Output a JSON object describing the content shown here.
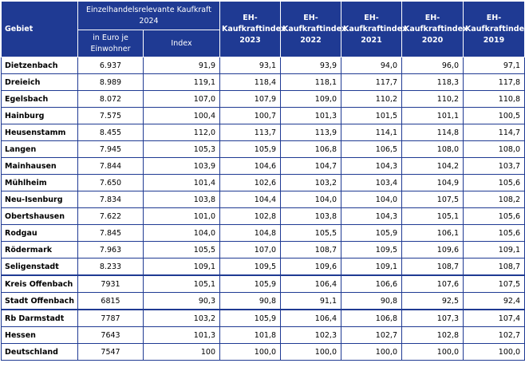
{
  "table": {
    "header": {
      "gebiet": "Gebiet",
      "kaufkraft_group": "Einzelhandelsrelevante Kaufkraft 2024",
      "euro": "in Euro je Einwohner",
      "index": "Index",
      "years": [
        "EH-Kaufkraftindex 2023",
        "EH-Kaufkraftindex 2022",
        "EH-Kaufkraftindex 2021",
        "EH-Kaufkraftindex 2020",
        "EH-Kaufkraftindex 2019"
      ]
    },
    "rows": [
      {
        "name": "Dietzenbach",
        "euro": "6.937",
        "index": "91,9",
        "y2023": "93,1",
        "y2022": "93,9",
        "y2021": "94,0",
        "y2020": "96,0",
        "y2019": "97,1"
      },
      {
        "name": "Dreieich",
        "euro": "8.989",
        "index": "119,1",
        "y2023": "118,4",
        "y2022": "118,1",
        "y2021": "117,7",
        "y2020": "118,3",
        "y2019": "117,8"
      },
      {
        "name": "Egelsbach",
        "euro": "8.072",
        "index": "107,0",
        "y2023": "107,9",
        "y2022": "109,0",
        "y2021": "110,2",
        "y2020": "110,2",
        "y2019": "110,8"
      },
      {
        "name": "Hainburg",
        "euro": "7.575",
        "index": "100,4",
        "y2023": "100,7",
        "y2022": "101,3",
        "y2021": "101,5",
        "y2020": "101,1",
        "y2019": "100,5"
      },
      {
        "name": "Heusenstamm",
        "euro": "8.455",
        "index": "112,0",
        "y2023": "113,7",
        "y2022": "113,9",
        "y2021": "114,1",
        "y2020": "114,8",
        "y2019": "114,7"
      },
      {
        "name": "Langen",
        "euro": "7.945",
        "index": "105,3",
        "y2023": "105,9",
        "y2022": "106,8",
        "y2021": "106,5",
        "y2020": "108,0",
        "y2019": "108,0"
      },
      {
        "name": "Mainhausen",
        "euro": "7.844",
        "index": "103,9",
        "y2023": "104,6",
        "y2022": "104,7",
        "y2021": "104,3",
        "y2020": "104,2",
        "y2019": "103,7"
      },
      {
        "name": "Mühlheim",
        "euro": "7.650",
        "index": "101,4",
        "y2023": "102,6",
        "y2022": "103,2",
        "y2021": "103,4",
        "y2020": "104,9",
        "y2019": "105,6"
      },
      {
        "name": "Neu-Isenburg",
        "euro": "7.834",
        "index": "103,8",
        "y2023": "104,4",
        "y2022": "104,0",
        "y2021": "104,0",
        "y2020": "107,5",
        "y2019": "108,2"
      },
      {
        "name": "Obertshausen",
        "euro": "7.622",
        "index": "101,0",
        "y2023": "102,8",
        "y2022": "103,8",
        "y2021": "104,3",
        "y2020": "105,1",
        "y2019": "105,6"
      },
      {
        "name": "Rodgau",
        "euro": "7.845",
        "index": "104,0",
        "y2023": "104,8",
        "y2022": "105,5",
        "y2021": "105,9",
        "y2020": "106,1",
        "y2019": "105,6"
      },
      {
        "name": "Rödermark",
        "euro": "7.963",
        "index": "105,5",
        "y2023": "107,0",
        "y2022": "108,7",
        "y2021": "109,5",
        "y2020": "109,6",
        "y2019": "109,1"
      },
      {
        "name": "Seligenstadt",
        "euro": "8.233",
        "index": "109,1",
        "y2023": "109,5",
        "y2022": "109,6",
        "y2021": "109,1",
        "y2020": "108,7",
        "y2019": "108,7"
      },
      {
        "name": "Kreis Offenbach",
        "euro": "7931",
        "index": "105,1",
        "y2023": "105,9",
        "y2022": "106,4",
        "y2021": "106,6",
        "y2020": "107,6",
        "y2019": "107,5"
      },
      {
        "name": "Stadt Offenbach",
        "euro": "6815",
        "index": "90,3",
        "y2023": "90,8",
        "y2022": "91,1",
        "y2021": "90,8",
        "y2020": "92,5",
        "y2019": "92,4"
      },
      {
        "name": "Rb Darmstadt",
        "euro": "7787",
        "index": "103,2",
        "y2023": "105,9",
        "y2022": "106,4",
        "y2021": "106,8",
        "y2020": "107,3",
        "y2019": "107,4"
      },
      {
        "name": "Hessen",
        "euro": "7643",
        "index": "101,3",
        "y2023": "101,8",
        "y2022": "102,3",
        "y2021": "102,7",
        "y2020": "102,8",
        "y2019": "102,7"
      },
      {
        "name": "Deutschland",
        "euro": "7547",
        "index": "100",
        "y2023": "100,0",
        "y2022": "100,0",
        "y2021": "100,0",
        "y2020": "100,0",
        "y2019": "100,0"
      }
    ]
  },
  "colors": {
    "header_bg": "#1f3a93",
    "border": "#1f3a93"
  }
}
